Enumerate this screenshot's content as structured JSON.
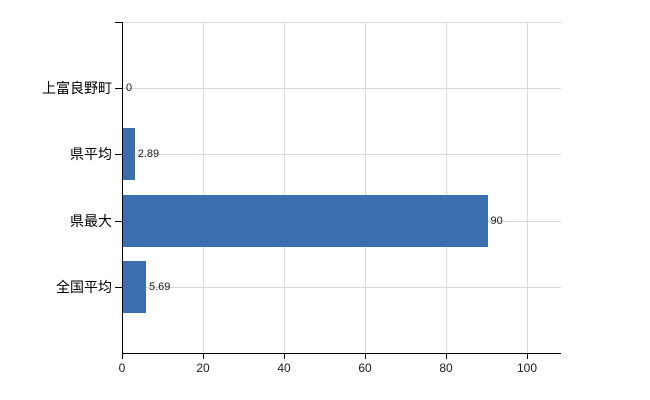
{
  "chart_data": {
    "type": "bar",
    "orientation": "horizontal",
    "title": "",
    "xlabel": "",
    "ylabel": "",
    "categories": [
      "上富良野町",
      "県平均",
      "県最大",
      "全国平均"
    ],
    "values": [
      0,
      2.89,
      90,
      5.69
    ],
    "value_labels": [
      "0",
      "2.89",
      "90",
      "5.69"
    ],
    "x_ticks": [
      0,
      20,
      40,
      60,
      80,
      100
    ],
    "x_tick_labels": [
      "0",
      "20",
      "40",
      "60",
      "80",
      "100"
    ],
    "xlim": [
      0,
      108.4
    ],
    "grid": true,
    "legend": false,
    "colors": {
      "bar": "#3b6fad",
      "vertical_grid": "#d9d9d9",
      "horizontal_grid": "#d2dad2",
      "axis": "#000000",
      "background": "#ffffff",
      "label_text": "#000000",
      "value_text": "#1a1a1a"
    }
  }
}
